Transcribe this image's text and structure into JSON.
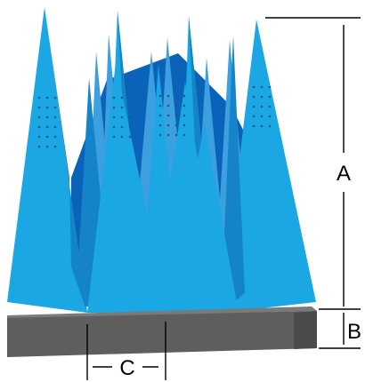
{
  "diagram": {
    "labels": {
      "a": "A",
      "b": "B",
      "c": "C"
    },
    "colors": {
      "foam_front": "#1aa7e3",
      "foam_side": "#1483c7",
      "foam_back": "#3b9fe0",
      "foam_deep": "#0a63b8",
      "base_front": "#5e5e5e",
      "base_top": "#7a7a7a",
      "base_side": "#4a4a4a",
      "dots": "#1a5c8a",
      "lines": "#000000"
    }
  }
}
